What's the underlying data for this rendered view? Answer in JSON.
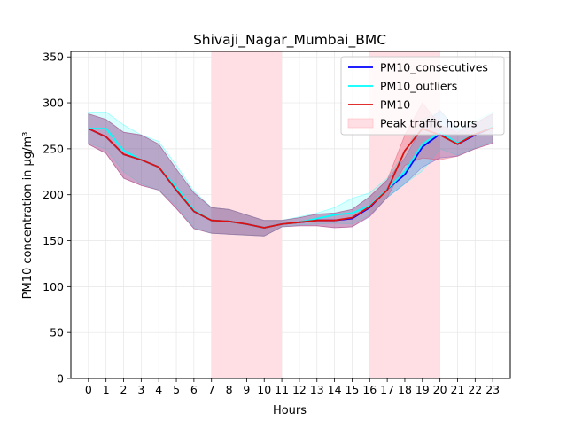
{
  "chart_data": {
    "type": "line",
    "title": "Shivaji_Nagar_Mumbai_BMC",
    "xlabel": "Hours",
    "ylabel": "PM10 concentration in μg/m³",
    "xlim": [
      -1,
      24
    ],
    "ylim": [
      0,
      356
    ],
    "x": [
      0,
      1,
      2,
      3,
      4,
      5,
      6,
      7,
      8,
      9,
      10,
      11,
      12,
      13,
      14,
      15,
      16,
      17,
      18,
      19,
      20,
      21,
      22,
      23
    ],
    "xticks": [
      "0",
      "1",
      "2",
      "3",
      "4",
      "5",
      "6",
      "7",
      "8",
      "9",
      "10",
      "11",
      "12",
      "13",
      "14",
      "15",
      "16",
      "17",
      "18",
      "19",
      "20",
      "21",
      "22",
      "23"
    ],
    "yticks": [
      0,
      50,
      100,
      150,
      200,
      250,
      300,
      350
    ],
    "grid": true,
    "legend_position": "top-right",
    "shaded_regions": [
      {
        "label": "Peak traffic hours",
        "x_start": 7,
        "x_end": 11,
        "color": "#ffdfe3"
      },
      {
        "label": "Peak traffic hours",
        "x_start": 16,
        "x_end": 20,
        "color": "#ffdfe3"
      }
    ],
    "series": [
      {
        "name": "PM10_consecutives",
        "color": "#0000ff",
        "band_color": "#3333cc",
        "values": [
          272,
          263,
          244,
          238,
          230,
          205,
          182,
          172,
          171,
          168,
          164,
          168,
          170,
          172,
          172,
          174,
          186,
          206,
          222,
          252,
          266,
          255,
          265,
          273
        ],
        "lower": [
          255,
          245,
          218,
          210,
          205,
          185,
          163,
          158,
          157,
          156,
          155,
          165,
          166,
          166,
          164,
          165,
          176,
          197,
          212,
          230,
          240,
          242,
          250,
          256
        ],
        "upper": [
          288,
          282,
          268,
          265,
          255,
          228,
          202,
          186,
          184,
          178,
          172,
          172,
          175,
          179,
          180,
          184,
          198,
          216,
          240,
          274,
          292,
          270,
          278,
          288
        ]
      },
      {
        "name": "PM10_outliers",
        "color": "#00ffff",
        "band_color": "#00ffff",
        "values": [
          272,
          272,
          248,
          238,
          230,
          208,
          183,
          172,
          171,
          168,
          164,
          168,
          170,
          174,
          178,
          180,
          188,
          206,
          225,
          255,
          268,
          256,
          266,
          274
        ],
        "lower": [
          256,
          250,
          225,
          212,
          205,
          188,
          164,
          158,
          157,
          156,
          155,
          165,
          167,
          168,
          169,
          168,
          178,
          197,
          212,
          226,
          250,
          243,
          251,
          258
        ],
        "upper": [
          290,
          290,
          276,
          265,
          258,
          232,
          204,
          186,
          184,
          178,
          172,
          172,
          176,
          180,
          186,
          196,
          202,
          218,
          246,
          282,
          290,
          272,
          280,
          290
        ]
      },
      {
        "name": "PM10",
        "color": "#dd1111",
        "band_color": "#dd2244",
        "values": [
          272,
          263,
          244,
          238,
          230,
          205,
          182,
          172,
          171,
          168,
          164,
          168,
          170,
          172,
          172,
          175,
          187,
          205,
          248,
          272,
          265,
          255,
          266,
          273
        ],
        "lower": [
          255,
          245,
          218,
          210,
          205,
          185,
          163,
          158,
          157,
          156,
          155,
          165,
          166,
          166,
          164,
          165,
          177,
          197,
          232,
          240,
          238,
          242,
          250,
          256
        ],
        "upper": [
          288,
          282,
          268,
          265,
          255,
          228,
          202,
          186,
          184,
          178,
          172,
          172,
          175,
          179,
          180,
          184,
          198,
          216,
          265,
          300,
          276,
          268,
          278,
          288
        ]
      }
    ],
    "legend": [
      "PM10_consecutives",
      "PM10_outliers",
      "PM10",
      "Peak traffic hours"
    ]
  }
}
